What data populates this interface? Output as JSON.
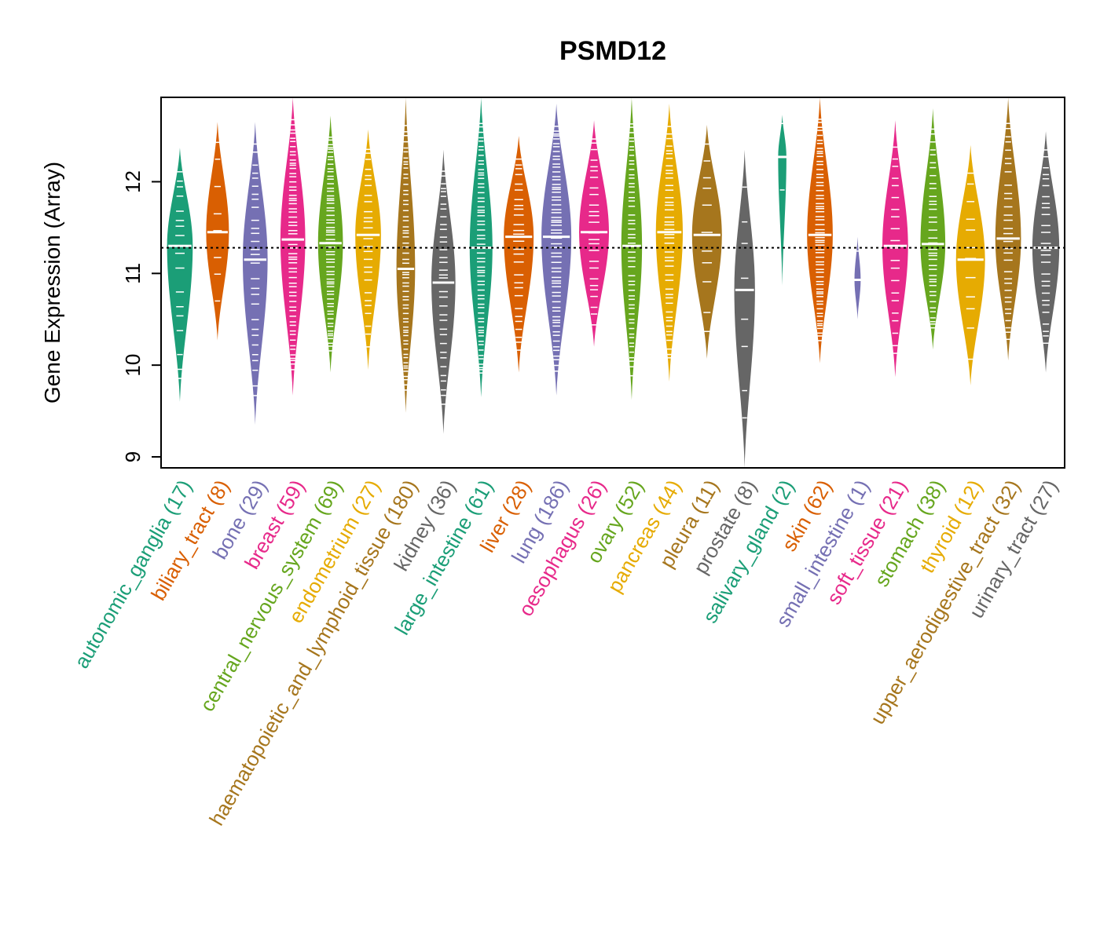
{
  "chart_data": {
    "type": "beanplot",
    "title": "PSMD12",
    "ylabel": "Gene Expression (Array)",
    "xlabel": "",
    "ylim": [
      8.88,
      12.92
    ],
    "yticks": [
      9,
      10,
      11,
      12
    ],
    "ytick_labels": [
      "9",
      "10",
      "11",
      "12"
    ],
    "reference_line": 11.28,
    "categories": [
      {
        "name": "autonomic_ganglia",
        "n": 17,
        "label_count": "(17)",
        "color": "#1B9E77",
        "median": 11.3,
        "min": 9.6,
        "max": 12.37,
        "rel_width": 0.62
      },
      {
        "name": "biliary_tract",
        "n": 8,
        "label_count": "(8)",
        "color": "#D95F02",
        "median": 11.45,
        "min": 10.27,
        "max": 12.65,
        "rel_width": 0.55
      },
      {
        "name": "bone",
        "n": 29,
        "label_count": "(29)",
        "color": "#7570B3",
        "median": 11.15,
        "min": 9.35,
        "max": 12.65,
        "rel_width": 0.6
      },
      {
        "name": "breast",
        "n": 59,
        "label_count": "(59)",
        "color": "#E7298A",
        "median": 11.37,
        "min": 9.67,
        "max": 12.92,
        "rel_width": 0.6
      },
      {
        "name": "central_nervous_system",
        "n": 69,
        "label_count": "(69)",
        "color": "#66A61E",
        "median": 11.33,
        "min": 9.92,
        "max": 12.72,
        "rel_width": 0.6
      },
      {
        "name": "endometrium",
        "n": 27,
        "label_count": "(27)",
        "color": "#E6AB02",
        "median": 11.42,
        "min": 9.95,
        "max": 12.57,
        "rel_width": 0.62
      },
      {
        "name": "haematopoietic_and_lymphoid_tissue",
        "n": 180,
        "label_count": "(180)",
        "color": "#A6761D",
        "median": 11.05,
        "min": 9.48,
        "max": 12.92,
        "rel_width": 0.45
      },
      {
        "name": "kidney",
        "n": 36,
        "label_count": "(36)",
        "color": "#666666",
        "median": 10.9,
        "min": 9.25,
        "max": 12.35,
        "rel_width": 0.58
      },
      {
        "name": "large_intestine",
        "n": 61,
        "label_count": "(61)",
        "color": "#1B9E77",
        "median": 11.28,
        "min": 9.65,
        "max": 12.92,
        "rel_width": 0.55
      },
      {
        "name": "liver",
        "n": 28,
        "label_count": "(28)",
        "color": "#D95F02",
        "median": 11.4,
        "min": 9.92,
        "max": 12.5,
        "rel_width": 0.72
      },
      {
        "name": "lung",
        "n": 186,
        "label_count": "(186)",
        "color": "#7570B3",
        "median": 11.4,
        "min": 9.67,
        "max": 12.85,
        "rel_width": 0.72
      },
      {
        "name": "oesophagus",
        "n": 26,
        "label_count": "(26)",
        "color": "#E7298A",
        "median": 11.45,
        "min": 10.2,
        "max": 12.67,
        "rel_width": 0.72
      },
      {
        "name": "ovary",
        "n": 52,
        "label_count": "(52)",
        "color": "#66A61E",
        "median": 11.3,
        "min": 9.62,
        "max": 12.92,
        "rel_width": 0.5
      },
      {
        "name": "pancreas",
        "n": 44,
        "label_count": "(44)",
        "color": "#E6AB02",
        "median": 11.45,
        "min": 9.82,
        "max": 12.85,
        "rel_width": 0.65
      },
      {
        "name": "pleura",
        "n": 11,
        "label_count": "(11)",
        "color": "#A6761D",
        "median": 11.42,
        "min": 10.07,
        "max": 12.62,
        "rel_width": 0.72
      },
      {
        "name": "prostate",
        "n": 8,
        "label_count": "(8)",
        "color": "#666666",
        "median": 10.82,
        "min": 8.88,
        "max": 12.35,
        "rel_width": 0.5
      },
      {
        "name": "salivary_gland",
        "n": 2,
        "label_count": "(2)",
        "color": "#1B9E77",
        "median": 12.27,
        "min": 10.87,
        "max": 12.73,
        "rel_width": 0.2
      },
      {
        "name": "skin",
        "n": 62,
        "label_count": "(62)",
        "color": "#D95F02",
        "median": 11.42,
        "min": 10.02,
        "max": 12.92,
        "rel_width": 0.62
      },
      {
        "name": "small_intestine",
        "n": 1,
        "label_count": "(1)",
        "color": "#7570B3",
        "median": 10.93,
        "min": 10.5,
        "max": 11.4,
        "rel_width": 0.15
      },
      {
        "name": "soft_tissue",
        "n": 21,
        "label_count": "(21)",
        "color": "#E7298A",
        "median": 11.3,
        "min": 9.87,
        "max": 12.67,
        "rel_width": 0.62
      },
      {
        "name": "stomach",
        "n": 38,
        "label_count": "(38)",
        "color": "#66A61E",
        "median": 11.32,
        "min": 10.17,
        "max": 12.8,
        "rel_width": 0.6
      },
      {
        "name": "thyroid",
        "n": 12,
        "label_count": "(12)",
        "color": "#E6AB02",
        "median": 11.15,
        "min": 9.78,
        "max": 12.4,
        "rel_width": 0.7
      },
      {
        "name": "upper_aerodigestive_tract",
        "n": 32,
        "label_count": "(32)",
        "color": "#A6761D",
        "median": 11.38,
        "min": 10.05,
        "max": 12.92,
        "rel_width": 0.62
      },
      {
        "name": "urinary_tract",
        "n": 27,
        "label_count": "(27)",
        "color": "#666666",
        "median": 11.28,
        "min": 9.92,
        "max": 12.55,
        "rel_width": 0.65
      }
    ]
  }
}
